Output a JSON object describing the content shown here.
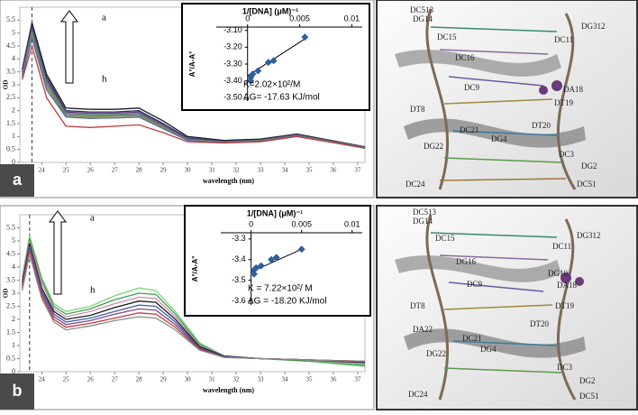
{
  "chart_data": [
    {
      "type": "line",
      "panel_label": "a",
      "y_label": "OD",
      "x_label": "wavelength (nm)",
      "arrow_labels": [
        "a",
        "h"
      ],
      "xlim": [
        23.1,
        37.3
      ],
      "xticks": [
        24,
        25,
        26,
        27,
        28,
        29,
        30,
        31,
        32,
        33,
        34,
        35,
        36,
        37
      ],
      "ylim": [
        0,
        6
      ],
      "yticks": [
        0,
        0.5,
        1,
        1.5,
        2,
        2.5,
        3,
        3.5,
        4,
        4.5,
        5,
        5.5
      ],
      "reference_line_x": 23.6,
      "x": [
        23.2,
        23.6,
        24.2,
        25,
        26,
        27,
        28,
        29,
        30,
        31.5,
        33,
        34.5,
        37.3
      ],
      "series": [
        {
          "color": "#1a1a1a",
          "values": [
            3.6,
            5.4,
            3.4,
            2.1,
            2.05,
            2.05,
            2.1,
            1.6,
            1.0,
            0.85,
            0.9,
            1.1,
            0.6
          ]
        },
        {
          "color": "#2a2f6e",
          "values": [
            3.5,
            5.3,
            3.3,
            2.0,
            1.95,
            1.95,
            2.0,
            1.5,
            0.95,
            0.82,
            0.88,
            1.08,
            0.6
          ]
        },
        {
          "color": "#6b3d7a",
          "values": [
            3.5,
            5.2,
            3.2,
            1.95,
            1.9,
            1.9,
            1.95,
            1.45,
            0.92,
            0.8,
            0.86,
            1.06,
            0.58
          ]
        },
        {
          "color": "#3f7f7a",
          "values": [
            3.4,
            5.1,
            3.1,
            1.9,
            1.85,
            1.85,
            1.9,
            1.4,
            0.9,
            0.8,
            0.85,
            1.05,
            0.58
          ]
        },
        {
          "color": "#7a7a7a",
          "values": [
            3.4,
            5.0,
            3.0,
            1.85,
            1.8,
            1.82,
            1.85,
            1.38,
            0.88,
            0.78,
            0.84,
            1.04,
            0.56
          ]
        },
        {
          "color": "#8a8a3a",
          "values": [
            3.3,
            4.9,
            2.9,
            1.8,
            1.75,
            1.78,
            1.8,
            1.35,
            0.86,
            0.78,
            0.83,
            1.03,
            0.56
          ]
        },
        {
          "color": "#4a6fb0",
          "values": [
            3.3,
            4.8,
            2.8,
            1.75,
            1.7,
            1.72,
            1.75,
            1.3,
            0.85,
            0.76,
            0.82,
            1.02,
            0.55
          ]
        },
        {
          "color": "#c0393b",
          "values": [
            3.2,
            4.5,
            2.5,
            1.4,
            1.35,
            1.4,
            1.45,
            1.15,
            0.8,
            0.75,
            0.8,
            1.0,
            0.55
          ]
        }
      ]
    },
    {
      "type": "scatter",
      "title": "1/[DNA] (μM)⁻¹",
      "y_label": "A°/A-A°",
      "annotations": [
        "K=2.02×10²/M",
        "ΔG= -17.63 KJ/mol"
      ],
      "xlim": [
        -0.003,
        0.011
      ],
      "xticks": [
        0,
        0.005,
        0.01
      ],
      "ylim": [
        -3.52,
        -3.08
      ],
      "yticks": [
        {
          "value": -3.1,
          "label": "-3.10"
        },
        {
          "value": -3.2,
          "label": "-3.20"
        },
        {
          "value": -3.3,
          "label": "-3.30"
        },
        {
          "value": -3.4,
          "label": "-3.40"
        },
        {
          "value": -3.5,
          "label": "-3.50"
        }
      ],
      "color": "#2e5f9e",
      "x": [
        0.0003,
        0.0003,
        0.0005,
        0.001,
        0.002,
        0.0025,
        0.0055
      ],
      "values": [
        -3.4,
        -3.38,
        -3.36,
        -3.34,
        -3.29,
        -3.28,
        -3.14
      ],
      "fit": {
        "x": [
          0,
          0.0055
        ],
        "values": [
          -3.37,
          -3.15
        ]
      }
    },
    {
      "type": "line",
      "panel_label": "b",
      "y_label": "OD",
      "x_label": "wavelength (nm)",
      "arrow_labels": [
        "a",
        "h"
      ],
      "xlim": [
        23.1,
        37.3
      ],
      "xticks": [
        24,
        25,
        26,
        27,
        28,
        29,
        30,
        31,
        32,
        33,
        34,
        35,
        36,
        37
      ],
      "ylim": [
        0,
        6
      ],
      "yticks": [
        0,
        0.5,
        1,
        1.5,
        2,
        2.5,
        3,
        3.5,
        4,
        4.5,
        5,
        5.5
      ],
      "reference_line_x": 23.5,
      "x": [
        23.2,
        23.5,
        24,
        24.5,
        25,
        26,
        27,
        28,
        28.7,
        29.5,
        30.5,
        31.5,
        33,
        35,
        37.3
      ],
      "series": [
        {
          "color": "#7ed37a",
          "values": [
            3.6,
            5.2,
            3.6,
            2.6,
            2.3,
            2.5,
            2.9,
            3.2,
            3.1,
            2.3,
            1.1,
            0.6,
            0.5,
            0.4,
            0.2
          ]
        },
        {
          "color": "#3aa34a",
          "values": [
            3.5,
            5.1,
            3.5,
            2.5,
            2.2,
            2.4,
            2.75,
            3.0,
            2.95,
            2.2,
            1.05,
            0.6,
            0.5,
            0.4,
            0.25
          ]
        },
        {
          "color": "#d08ab0",
          "values": [
            3.5,
            5.0,
            3.4,
            2.4,
            2.1,
            2.3,
            2.6,
            2.85,
            2.8,
            2.1,
            1.0,
            0.6,
            0.5,
            0.45,
            0.3
          ]
        },
        {
          "color": "#1a1a1a",
          "values": [
            3.4,
            4.9,
            3.2,
            2.3,
            2.0,
            2.15,
            2.45,
            2.7,
            2.65,
            2.0,
            0.95,
            0.6,
            0.5,
            0.45,
            0.35
          ]
        },
        {
          "color": "#3b5ea8",
          "values": [
            3.3,
            4.8,
            3.1,
            2.2,
            1.9,
            2.05,
            2.3,
            2.55,
            2.5,
            1.9,
            0.9,
            0.58,
            0.5,
            0.45,
            0.38
          ]
        },
        {
          "color": "#7a4a8e",
          "values": [
            3.3,
            4.7,
            3.0,
            2.1,
            1.8,
            1.95,
            2.2,
            2.4,
            2.35,
            1.8,
            0.88,
            0.56,
            0.5,
            0.45,
            0.4
          ]
        },
        {
          "color": "#c0393b",
          "values": [
            3.2,
            4.6,
            2.9,
            2.0,
            1.7,
            1.85,
            2.05,
            2.25,
            2.2,
            1.7,
            0.85,
            0.55,
            0.5,
            0.45,
            0.4
          ]
        },
        {
          "color": "#8a8a8a",
          "values": [
            3.1,
            4.5,
            2.8,
            1.9,
            1.6,
            1.75,
            1.95,
            2.1,
            2.05,
            1.6,
            0.82,
            0.55,
            0.5,
            0.45,
            0.4
          ]
        }
      ]
    },
    {
      "type": "scatter",
      "title": "1/[DNA] (μM)⁻¹",
      "y_label": "A°/A-A°",
      "annotations": [
        "K = 7.22×10²/ M",
        "ΔG = -18.20 KJ/mol"
      ],
      "xlim": [
        -0.003,
        0.011
      ],
      "xticks": [
        0,
        0.005,
        0.01
      ],
      "ylim": [
        -3.62,
        -3.27
      ],
      "yticks": [
        -3.3,
        -3.4,
        -3.5,
        -3.6
      ],
      "color": "#2e5f9e",
      "x": [
        0.0003,
        0.0003,
        0.0005,
        0.001,
        0.002,
        0.0025,
        0.005
      ],
      "values": [
        -3.47,
        -3.45,
        -3.44,
        -3.43,
        -3.4,
        -3.39,
        -3.35
      ],
      "fit": {
        "x": [
          0,
          0.005
        ],
        "values": [
          -3.46,
          -3.35
        ]
      }
    }
  ],
  "structures": [
    {
      "labels": [
        "DC513",
        "DG14",
        "DC15",
        "DG312",
        "DC11",
        "DC16",
        "DC9",
        "DA18",
        "DT8",
        "DT19",
        "DT20",
        "DC21",
        "DG22",
        "DG4",
        "DC3",
        "DG2",
        "DC24",
        "DC51"
      ]
    },
    {
      "labels": [
        "DC513",
        "DG14",
        "DC15",
        "DG312",
        "DC11",
        "DG16",
        "DC9",
        "DG10",
        "DA18",
        "DT8",
        "DT19",
        "DT20",
        "DA22",
        "DC21",
        "DG22",
        "DG4",
        "DC3",
        "DG2",
        "DC24",
        "DC51"
      ]
    }
  ]
}
